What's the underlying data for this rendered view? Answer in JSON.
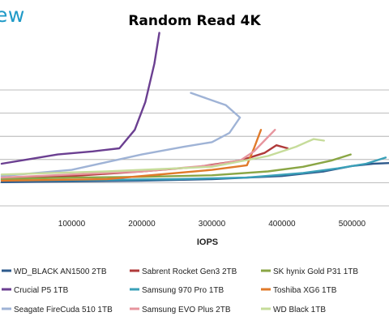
{
  "brand": {
    "logo_text": "ew"
  },
  "chart_data": {
    "type": "line",
    "title": "Random Read 4K",
    "xlabel": "IOPS",
    "ylabel": "",
    "xlim": [
      0,
      555000
    ],
    "ylim": [
      0,
      1
    ],
    "x_ticks": [
      {
        "value": 100000,
        "label": "100000"
      },
      {
        "value": 200000,
        "label": "200000"
      },
      {
        "value": 300000,
        "label": "300000"
      },
      {
        "value": 400000,
        "label": "400000"
      },
      {
        "value": 500000,
        "label": "500000"
      }
    ],
    "y_gridlines": [
      0,
      1,
      2,
      3,
      4,
      5
    ],
    "grid": true,
    "legend_position": "bottom",
    "series": [
      {
        "name": "WD_BLACK AN1500 2TB",
        "color": "#2e5a8c",
        "points": [
          [
            0,
            0.08
          ],
          [
            100000,
            0.085
          ],
          [
            200000,
            0.09
          ],
          [
            300000,
            0.1
          ],
          [
            400000,
            0.12
          ],
          [
            460000,
            0.15
          ],
          [
            500000,
            0.185
          ],
          [
            530000,
            0.2
          ],
          [
            555000,
            0.205
          ]
        ]
      },
      {
        "name": "Sabrent Rocket Gen3 2TB",
        "color": "#b03a3a",
        "points": [
          [
            0,
            0.1
          ],
          [
            100000,
            0.12
          ],
          [
            200000,
            0.15
          ],
          [
            280000,
            0.18
          ],
          [
            340000,
            0.22
          ],
          [
            375000,
            0.27
          ],
          [
            392000,
            0.32
          ],
          [
            408000,
            0.3
          ]
        ]
      },
      {
        "name": "SK hynix Gold P31 1TB",
        "color": "#8aa645",
        "points": [
          [
            0,
            0.1
          ],
          [
            100000,
            0.11
          ],
          [
            200000,
            0.115
          ],
          [
            300000,
            0.125
          ],
          [
            380000,
            0.15
          ],
          [
            430000,
            0.18
          ],
          [
            470000,
            0.22
          ],
          [
            498000,
            0.26
          ]
        ]
      },
      {
        "name": "Crucial P5 1TB",
        "color": "#6b3f91",
        "points": [
          [
            0,
            0.2
          ],
          [
            40000,
            0.23
          ],
          [
            80000,
            0.26
          ],
          [
            130000,
            0.28
          ],
          [
            168000,
            0.3
          ],
          [
            190000,
            0.42
          ],
          [
            205000,
            0.6
          ],
          [
            218000,
            0.85
          ],
          [
            225000,
            1.05
          ]
        ]
      },
      {
        "name": "Samsung 970 Pro 1TB",
        "color": "#3aa0b8",
        "points": [
          [
            0,
            0.09
          ],
          [
            150000,
            0.095
          ],
          [
            250000,
            0.1
          ],
          [
            350000,
            0.11
          ],
          [
            430000,
            0.14
          ],
          [
            480000,
            0.17
          ],
          [
            520000,
            0.2
          ],
          [
            548000,
            0.24
          ]
        ]
      },
      {
        "name": "Toshiba XG6 1TB",
        "color": "#e07a2a",
        "points": [
          [
            0,
            0.09
          ],
          [
            150000,
            0.1
          ],
          [
            300000,
            0.16
          ],
          [
            350000,
            0.19
          ],
          [
            360000,
            0.3
          ],
          [
            370000,
            0.42
          ]
        ]
      },
      {
        "name": "Seagate FireCuda 510 1TB",
        "color": "#9fb3d6",
        "points": [
          [
            0,
            0.12
          ],
          [
            100000,
            0.16
          ],
          [
            150000,
            0.21
          ],
          [
            200000,
            0.26
          ],
          [
            260000,
            0.31
          ],
          [
            300000,
            0.34
          ],
          [
            325000,
            0.4
          ],
          [
            340000,
            0.5
          ],
          [
            320000,
            0.58
          ],
          [
            270000,
            0.66
          ]
        ]
      },
      {
        "name": "Samsung EVO Plus 2TB",
        "color": "#e7959e",
        "points": [
          [
            0,
            0.11
          ],
          [
            200000,
            0.15
          ],
          [
            300000,
            0.19
          ],
          [
            340000,
            0.22
          ],
          [
            360000,
            0.28
          ],
          [
            375000,
            0.35
          ],
          [
            390000,
            0.42
          ]
        ]
      },
      {
        "name": "WD Black 1TB",
        "color": "#c6dc9a",
        "points": [
          [
            0,
            0.13
          ],
          [
            150000,
            0.15
          ],
          [
            300000,
            0.18
          ],
          [
            380000,
            0.25
          ],
          [
            420000,
            0.31
          ],
          [
            445000,
            0.36
          ],
          [
            460000,
            0.35
          ]
        ]
      }
    ]
  }
}
